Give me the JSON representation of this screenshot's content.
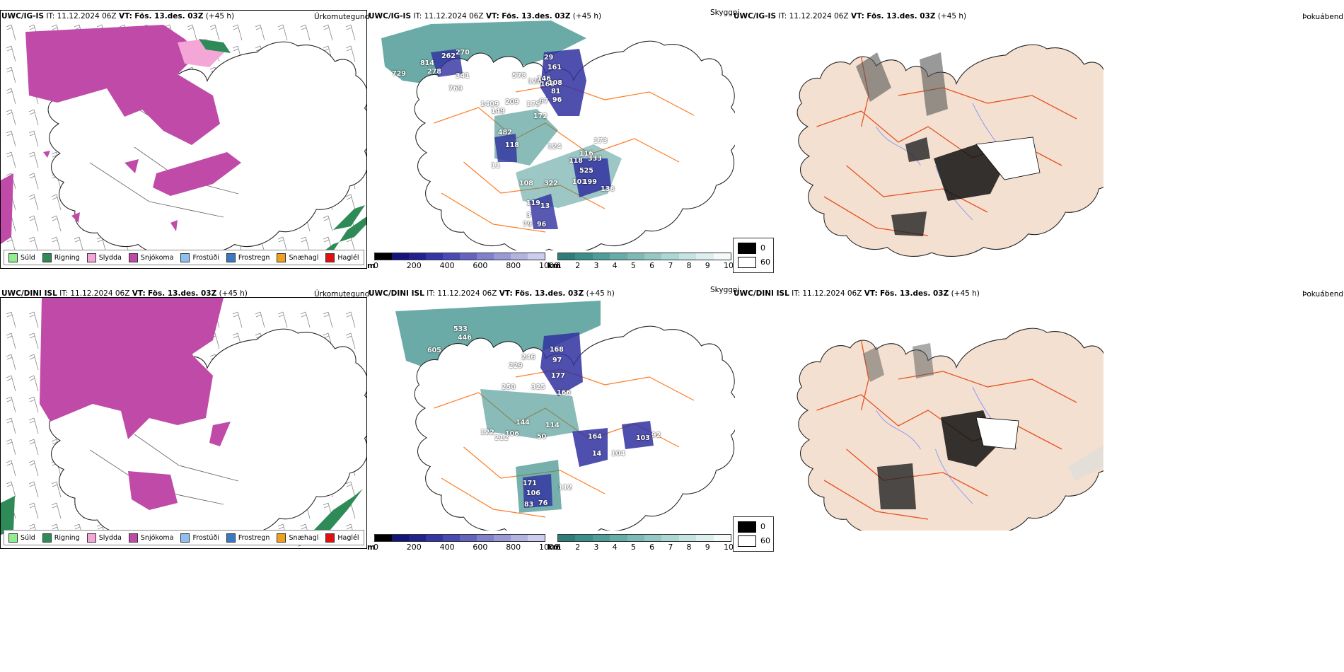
{
  "rows": [
    {
      "model": "UWC/IG-IS",
      "it_label": "IT:",
      "it_value": "11.12.2024 06Z",
      "vt_label": "VT:",
      "vt_value": "Fös. 13.des. 03Z",
      "lead": "(+45 h)",
      "labels": [
        "814",
        "270",
        "262",
        "729",
        "278",
        "341",
        "769",
        "29",
        "161",
        "578",
        "120",
        "146",
        "166",
        "108",
        "81",
        "96",
        "179",
        "67",
        "149",
        "172",
        "209",
        "1409",
        "482",
        "118",
        "124",
        "173",
        "116",
        "118",
        "333",
        "11",
        "525",
        "101",
        "199",
        "108",
        "322",
        "138",
        "119",
        "13",
        "3",
        "79",
        "96"
      ]
    },
    {
      "model": "UWC/DINI ISL",
      "it_label": "IT:",
      "it_value": "11.12.2024 06Z",
      "vt_label": "VT:",
      "vt_value": "Fös. 13.des. 03Z",
      "lead": "(+45 h)",
      "labels": [
        "533",
        "446",
        "605",
        "168",
        "246",
        "97",
        "229",
        "177",
        "250",
        "325",
        "166",
        "144",
        "114",
        "122",
        "106",
        "164",
        "103",
        "92",
        "212",
        "50",
        "14",
        "104",
        "171",
        "112",
        "106",
        "83",
        "76"
      ]
    }
  ],
  "panel_titles": {
    "precip": "Úrkomutegund",
    "clouds": "Skyggni",
    "dew": "Þokuábendi"
  },
  "precip_legend": [
    {
      "label": "Súld",
      "color": "#90ee90"
    },
    {
      "label": "Rigning",
      "color": "#2e8b57"
    },
    {
      "label": "Slydda",
      "color": "#f4a6d7"
    },
    {
      "label": "Snjókoma",
      "color": "#c04aa8"
    },
    {
      "label": "Frostúði",
      "color": "#8fbff0"
    },
    {
      "label": "Frostregn",
      "color": "#3a78c4"
    },
    {
      "label": "Snæhagl",
      "color": "#f0a020"
    },
    {
      "label": "Haglél",
      "color": "#e01010"
    }
  ],
  "cloudbase_scale": {
    "unit": "m",
    "ticks": [
      "0",
      "200",
      "400",
      "600",
      "800",
      "1000"
    ]
  },
  "visibility_scale": {
    "unit": "km",
    "ticks": [
      "1",
      "2",
      "3",
      "4",
      "5",
      "6",
      "7",
      "8",
      "9",
      "10"
    ]
  },
  "fog_scale": {
    "ticks": [
      "0",
      "60"
    ]
  },
  "colors": {
    "snow": "#c04aa8",
    "rain": "#2e8b57",
    "sleet": "#f4a6d7",
    "lowcloud": "#3a8f8a",
    "cloudbase": "#3030a0",
    "land": "#f3e0d0",
    "roads": "#ff7a20",
    "rivers": "#8090ff"
  }
}
